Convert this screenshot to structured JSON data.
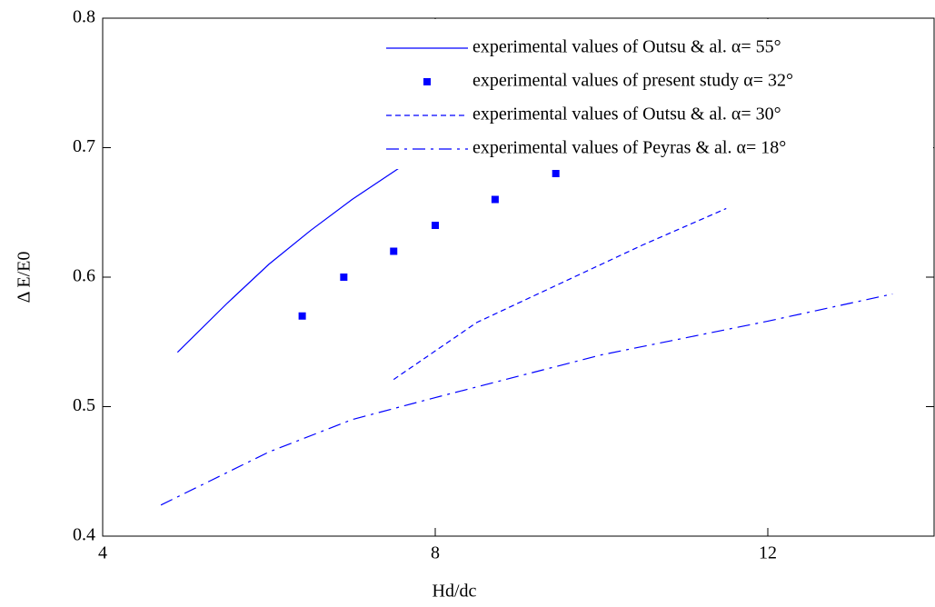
{
  "chart_data": {
    "type": "line",
    "xlabel": "Hd/dc",
    "ylabel": "Δ E/E0",
    "xlim": [
      4,
      14
    ],
    "ylim": [
      0.4,
      0.8
    ],
    "xticks": [
      4,
      8,
      12
    ],
    "yticks": [
      0.4,
      0.5,
      0.6,
      0.7,
      0.8
    ],
    "legend": "upper right",
    "series": [
      {
        "name": "experimental values of Outsu & al. α= 55°",
        "color": "#0000ff",
        "linestyle": "solid",
        "x": [
          4.9,
          5.5,
          6.0,
          6.5,
          7.0,
          7.7
        ],
        "values": [
          0.542,
          0.58,
          0.61,
          0.636,
          0.66,
          0.69
        ]
      },
      {
        "name": "experimental values of present study  α= 32°",
        "color": "#0000ff",
        "linestyle": "none",
        "marker": "square",
        "x": [
          6.4,
          6.9,
          7.5,
          8.0,
          8.72,
          9.45
        ],
        "values": [
          0.57,
          0.6,
          0.62,
          0.64,
          0.66,
          0.68
        ]
      },
      {
        "name": "experimental values of Outsu & al. α= 30°",
        "color": "#0000ff",
        "linestyle": "dashed",
        "x": [
          7.5,
          8.5,
          9.5,
          10.5,
          11.5
        ],
        "values": [
          0.521,
          0.565,
          0.595,
          0.625,
          0.653
        ]
      },
      {
        "name": "experimental values of Peyras & al. α= 18°",
        "color": "#0000ff",
        "linestyle": "dashdot",
        "x": [
          4.7,
          6.0,
          7.0,
          8.0,
          10.0,
          12.0,
          13.5
        ],
        "values": [
          0.424,
          0.465,
          0.49,
          0.507,
          0.54,
          0.566,
          0.587
        ]
      }
    ]
  }
}
